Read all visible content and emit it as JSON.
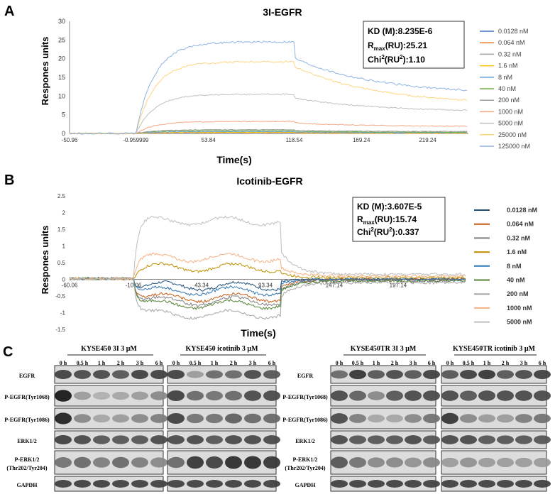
{
  "figure": {
    "panel_a": {
      "letter": "A",
      "chart_data": {
        "type": "line",
        "title": "3I-EGFR",
        "xlabel": "Time(s)",
        "ylabel": "Respones units",
        "xlim": [
          -50.96,
          250
        ],
        "ylim": [
          0,
          30
        ],
        "x_ticks": [
          "-50.96",
          "-0.959999",
          "53.84",
          "118.54",
          "169.24",
          "219.24"
        ],
        "x_tick_values": [
          -50.96,
          -0.96,
          53.84,
          118.54,
          169.24,
          219.24
        ],
        "y_ticks": [
          "0",
          "5",
          "10",
          "15",
          "20",
          "25",
          "30"
        ],
        "y_tick_values": [
          0,
          5,
          10,
          15,
          20,
          25,
          30
        ],
        "inset": {
          "kd": "KD (M):8.235E-6",
          "rmax_r": "R",
          "rmax_sub": "max",
          "rmax_rest": "(RU):25.21",
          "chi_pre": "Chi",
          "chi_sup": "2",
          "chi_mid": "(RU",
          "chi_sup2": "2",
          "chi_end": "):1.10"
        },
        "series": [
          {
            "name": "0.0128 nM",
            "color": "#4472c4",
            "assoc_end": 0.1,
            "dissoc_start": 0.1,
            "dissoc_end": 0.05
          },
          {
            "name": "0.064 nM",
            "color": "#ed7d31",
            "assoc_end": 0.15,
            "dissoc_start": 0.1,
            "dissoc_end": 0.05
          },
          {
            "name": "0.32 nM",
            "color": "#a5a5a5",
            "assoc_end": 0.2,
            "dissoc_start": 0.15,
            "dissoc_end": 0.1
          },
          {
            "name": "1.6 nM",
            "color": "#ffc000",
            "assoc_end": 0.3,
            "dissoc_start": 0.2,
            "dissoc_end": 0.1
          },
          {
            "name": "8 nM",
            "color": "#5b9bd5",
            "assoc_end": 0.5,
            "dissoc_start": 0.4,
            "dissoc_end": 0.2
          },
          {
            "name": "40 nM",
            "color": "#70ad47",
            "assoc_end": 0.8,
            "dissoc_start": 0.6,
            "dissoc_end": 0.3
          },
          {
            "name": "200 nM",
            "color": "#9e9e9e",
            "assoc_end": 1.0,
            "dissoc_start": 0.8,
            "dissoc_end": 0.5
          },
          {
            "name": "1000 nM",
            "color": "#f4a582",
            "assoc_end": 3.2,
            "dissoc_start": 2.8,
            "dissoc_end": 1.8
          },
          {
            "name": "5000 nM",
            "color": "#c0c0c0",
            "assoc_end": 10.5,
            "dissoc_start": 9.5,
            "dissoc_end": 5.8
          },
          {
            "name": "25000 nM",
            "color": "#ffd580",
            "assoc_end": 19.2,
            "dissoc_start": 18.0,
            "dissoc_end": 7.8
          },
          {
            "name": "125000 nM",
            "color": "#8fb4e3",
            "assoc_end": 24.5,
            "dissoc_start": 20.2,
            "dissoc_end": 10.5
          }
        ]
      }
    },
    "panel_b": {
      "letter": "B",
      "chart_data": {
        "type": "line",
        "title": "Icotinib-EGFR",
        "xlabel": "Time(s)",
        "ylabel": "Respones units",
        "xlim": [
          -60.06,
          250
        ],
        "ylim": [
          -1.5,
          2.5
        ],
        "x_ticks": [
          "-60.06",
          "-10.06",
          "43.34",
          "93.34",
          "147.14",
          "197.14"
        ],
        "x_tick_values": [
          -60.06,
          -10.06,
          43.34,
          93.34,
          147.14,
          197.14
        ],
        "y_ticks": [
          "-1.5",
          "-1",
          "-0.5",
          "0",
          "0.5",
          "1",
          "1.5",
          "2",
          "2.5"
        ],
        "y_tick_values": [
          -1.5,
          -1,
          -0.5,
          0,
          0.5,
          1,
          1.5,
          2,
          2.5
        ],
        "inset": {
          "kd": "KD (M):3.607E-5",
          "rmax_r": "R",
          "rmax_sub": "max",
          "rmax_rest": "(RU):15.74",
          "chi_pre": "Chi",
          "chi_sup": "2",
          "chi_mid": "(RU",
          "chi_sup2": "2",
          "chi_end": "):0.337"
        },
        "series": [
          {
            "name": "0.0128 nM",
            "color": "#1f4e79",
            "level": -0.2,
            "after": 0.0
          },
          {
            "name": "0.064 nM",
            "color": "#c55a11",
            "level": -0.55,
            "after": 0.0
          },
          {
            "name": "0.32 nM",
            "color": "#7f7f7f",
            "level": -0.65,
            "after": -0.05
          },
          {
            "name": "1.6 nM",
            "color": "#bf9000",
            "level": 0.35,
            "after": 0.05
          },
          {
            "name": "8 nM",
            "color": "#2e75b6",
            "level": -0.35,
            "after": 0.0
          },
          {
            "name": "40 nM",
            "color": "#548235",
            "level": -0.75,
            "after": -0.05
          },
          {
            "name": "200 nM",
            "color": "#a5a5a5",
            "level": -1.05,
            "after": -0.1
          },
          {
            "name": "1000 nM",
            "color": "#f4b183",
            "level": 0.65,
            "after": 0.1
          },
          {
            "name": "5000 nM",
            "color": "#bfbfbf",
            "level": 1.75,
            "after": 0.15
          }
        ]
      }
    },
    "panel_c": {
      "letter": "C",
      "left_block": {
        "row_labels": [
          "EGFR",
          "P-EGFR(Tyr1068)",
          "P-EGFR(Tyr1086)",
          "ERK1/2",
          "P-ERK1/2",
          "(Thr202/Tyr204)",
          "GAPDH"
        ],
        "groups": [
          {
            "title": "KYSE450 3I 3 μM",
            "times": [
              "0 h",
              "0.5 h",
              "1 h",
              "2 h",
              "3 h",
              "6 h"
            ]
          },
          {
            "title": "KYSE450 icotinib 3 μM",
            "times": [
              "0 h",
              "0.5 h",
              "1 h",
              "2 h",
              "3 h",
              "6 h"
            ]
          }
        ],
        "intensity": [
          [
            [
              0.8,
              0.75,
              0.75,
              0.7,
              0.8,
              0.8
            ],
            [
              0.8,
              0.35,
              0.6,
              0.6,
              0.75,
              0.7
            ]
          ],
          [
            [
              1.0,
              0.35,
              0.25,
              0.3,
              0.35,
              0.45
            ],
            [
              0.8,
              0.6,
              0.55,
              0.6,
              0.75,
              0.75
            ]
          ],
          [
            [
              0.95,
              0.45,
              0.3,
              0.35,
              0.45,
              0.5
            ],
            [
              0.8,
              0.55,
              0.55,
              0.65,
              0.6,
              0.6
            ]
          ],
          [
            [
              0.8,
              0.75,
              0.7,
              0.7,
              0.7,
              0.75
            ],
            [
              0.75,
              0.75,
              0.7,
              0.75,
              0.75,
              0.75
            ]
          ],
          [
            [
              0.55,
              0.6,
              0.5,
              0.6,
              0.5,
              0.45
            ],
            [
              0.6,
              0.85,
              0.8,
              0.9,
              0.9,
              0.85
            ]
          ],
          [
            [
              0.8,
              0.8,
              0.8,
              0.8,
              0.8,
              0.8
            ],
            [
              0.8,
              0.8,
              0.8,
              0.8,
              0.8,
              0.8
            ]
          ]
        ]
      },
      "right_block": {
        "row_labels": [
          "EGFR",
          "P-EGFR(Tyr1068)",
          "P-EGFR(Tyr1086)",
          "ERK1/2",
          "P-ERK1/2",
          "(Thr202/Tyr204)",
          "GAPDH"
        ],
        "groups": [
          {
            "title": "KYSE450TR 3I 3 μM",
            "times": [
              "0 h",
              "0.5 h",
              "1 h",
              "2 h",
              "3 h",
              "6 h"
            ]
          },
          {
            "title": "KYSE450TR icotinib 3 μM",
            "times": [
              "0 h",
              "0.5 h",
              "1 h",
              "2 h",
              "3 h",
              "6 h"
            ]
          }
        ],
        "intensity": [
          [
            [
              0.6,
              0.85,
              0.7,
              0.75,
              0.7,
              0.8
            ],
            [
              0.7,
              0.8,
              0.85,
              0.7,
              0.75,
              0.8
            ]
          ],
          [
            [
              0.75,
              0.65,
              0.45,
              0.7,
              0.75,
              0.75
            ],
            [
              0.75,
              0.7,
              0.75,
              0.75,
              0.75,
              0.75
            ]
          ],
          [
            [
              0.75,
              0.5,
              0.3,
              0.3,
              0.45,
              0.55
            ],
            [
              0.85,
              0.45,
              0.35,
              0.35,
              0.5,
              0.55
            ]
          ],
          [
            [
              0.75,
              0.7,
              0.7,
              0.7,
              0.75,
              0.7
            ],
            [
              0.75,
              0.75,
              0.7,
              0.7,
              0.7,
              0.7
            ]
          ],
          [
            [
              0.7,
              0.55,
              0.45,
              0.45,
              0.4,
              0.45
            ],
            [
              0.35,
              0.4,
              0.35,
              0.35,
              0.35,
              0.35
            ]
          ],
          [
            [
              0.8,
              0.8,
              0.8,
              0.8,
              0.8,
              0.8
            ],
            [
              0.8,
              0.8,
              0.8,
              0.8,
              0.8,
              0.8
            ]
          ]
        ]
      }
    }
  }
}
